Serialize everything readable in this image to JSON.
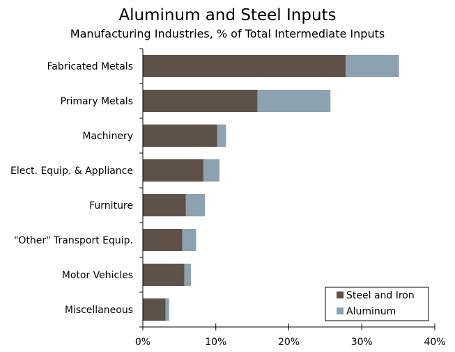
{
  "chart_data": {
    "type": "bar",
    "orientation": "horizontal",
    "stacked": true,
    "title": "Aluminum and Steel Inputs",
    "subtitle": "Manufacturing Industries, % of Total Intermediate Inputs",
    "categories": [
      "Fabricated Metals",
      "Primary Metals",
      "Machinery",
      "Elect. Equip. & Appliance",
      "Furniture",
      "\"Other\" Transport Equip.",
      "Motor Vehicles",
      "Miscellaneous"
    ],
    "series": [
      {
        "name": "Steel and Iron",
        "color": "#5e5248",
        "values": [
          27.8,
          15.7,
          10.2,
          8.3,
          5.9,
          5.4,
          5.7,
          3.1
        ]
      },
      {
        "name": "Aluminum",
        "color": "#8da2b0",
        "values": [
          7.3,
          10.0,
          1.2,
          2.2,
          2.6,
          1.9,
          0.9,
          0.5
        ]
      }
    ],
    "xlim": [
      0,
      40
    ],
    "xticks": [
      0,
      10,
      20,
      30,
      40
    ],
    "xtick_labels": [
      "0%",
      "10%",
      "20%",
      "30%",
      "40%"
    ],
    "grid": false,
    "legend_position": "bottom-right"
  }
}
